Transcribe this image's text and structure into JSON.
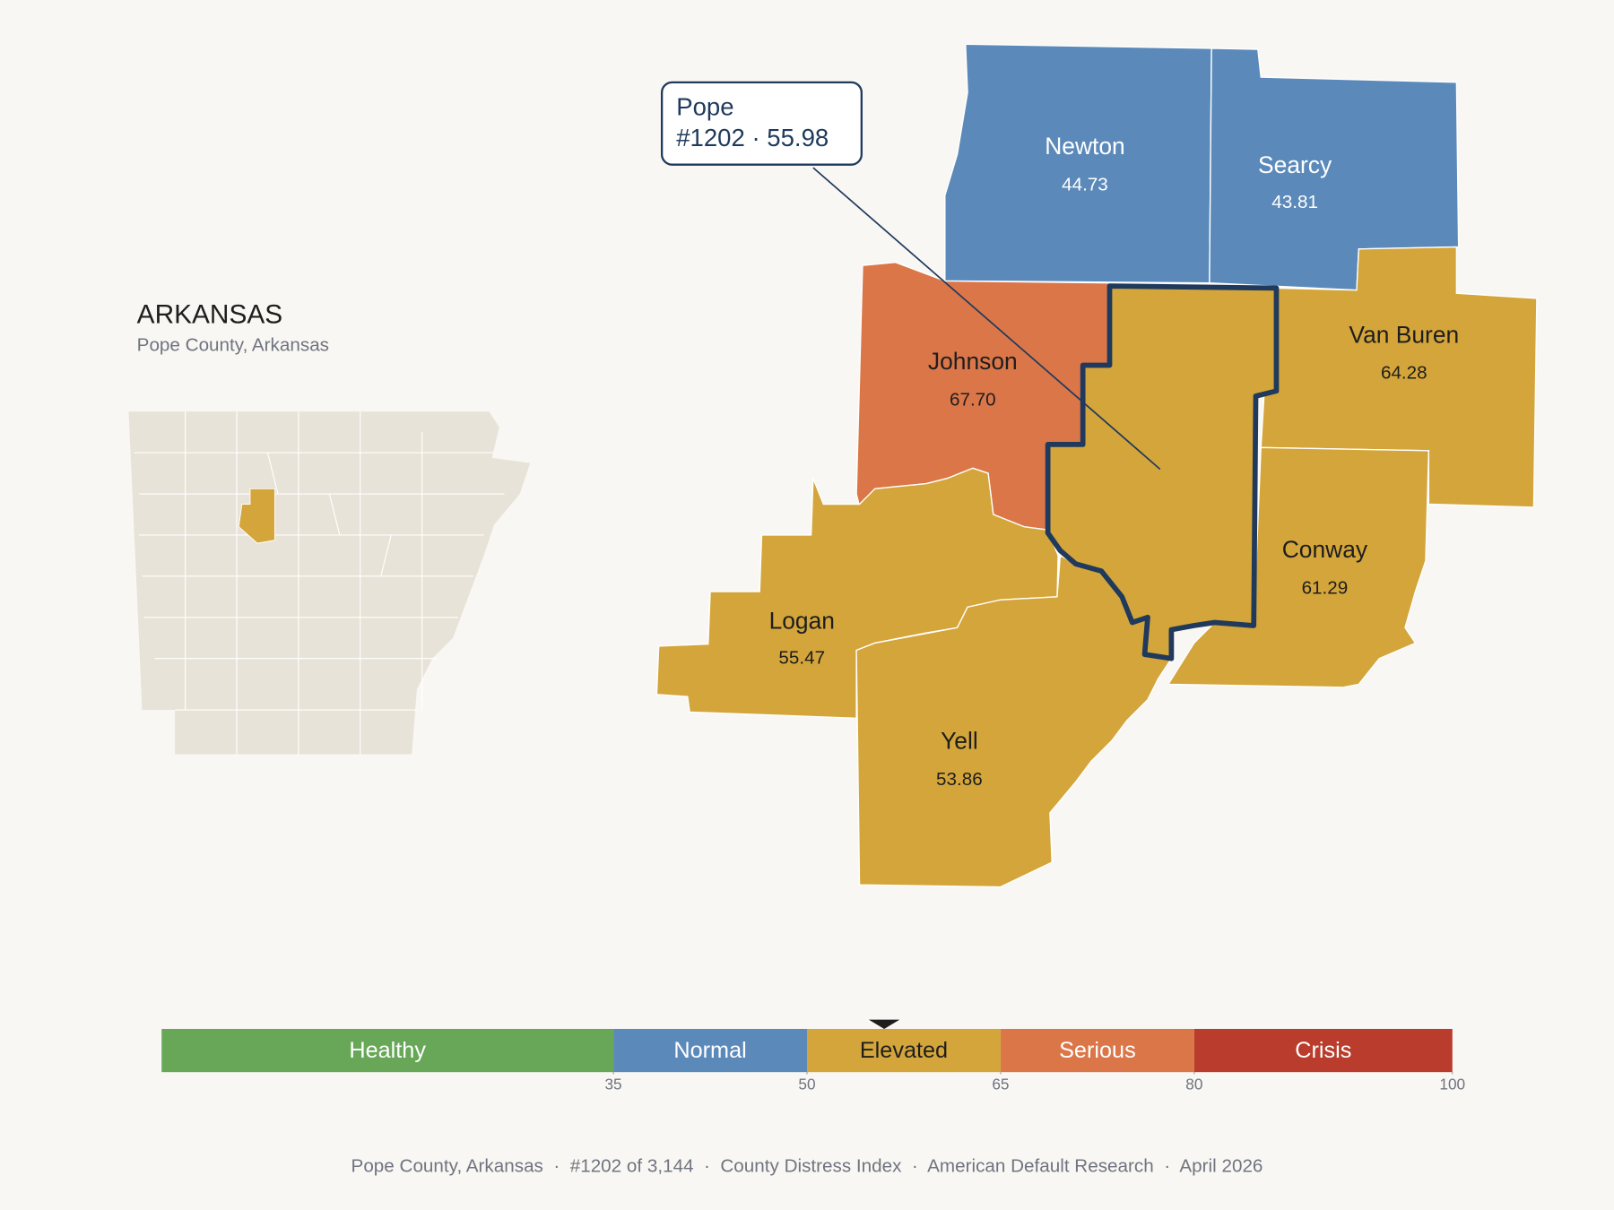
{
  "header": {
    "title": "ARKANSAS",
    "subtitle": "Pope County, Arkansas"
  },
  "counties": [
    {
      "name": "Newton",
      "value": "44.73"
    },
    {
      "name": "Searcy",
      "value": "43.81"
    },
    {
      "name": "Johnson",
      "value": "67.70"
    },
    {
      "name": "Van Buren",
      "value": "64.28"
    },
    {
      "name": "Conway",
      "value": "61.29"
    },
    {
      "name": "Logan",
      "value": "55.47"
    },
    {
      "name": "Yell",
      "value": "53.86"
    }
  ],
  "callout": {
    "name": "Pope",
    "detail": "#1202 · 55.98"
  },
  "scale": {
    "range": [
      0,
      100
    ],
    "ticks": [
      35,
      50,
      65,
      80,
      100
    ],
    "marker": 55.98,
    "bands": [
      {
        "label": "Healthy",
        "color": "#67a757",
        "label_color": "#ffffff"
      },
      {
        "label": "Normal",
        "color": "#5b8aba",
        "label_color": "#ffffff"
      },
      {
        "label": "Elevated",
        "color": "#d4a53a",
        "label_color": "#1e1e1e"
      },
      {
        "label": "Serious",
        "color": "#db7649",
        "label_color": "#ffffff"
      },
      {
        "label": "Crisis",
        "color": "#b93c2c",
        "label_color": "#ffffff"
      }
    ]
  },
  "footer": "Pope County, Arkansas  ·  #1202 of 3,144  ·  County Distress Index  ·  American Default Research  ·  April 2026"
}
